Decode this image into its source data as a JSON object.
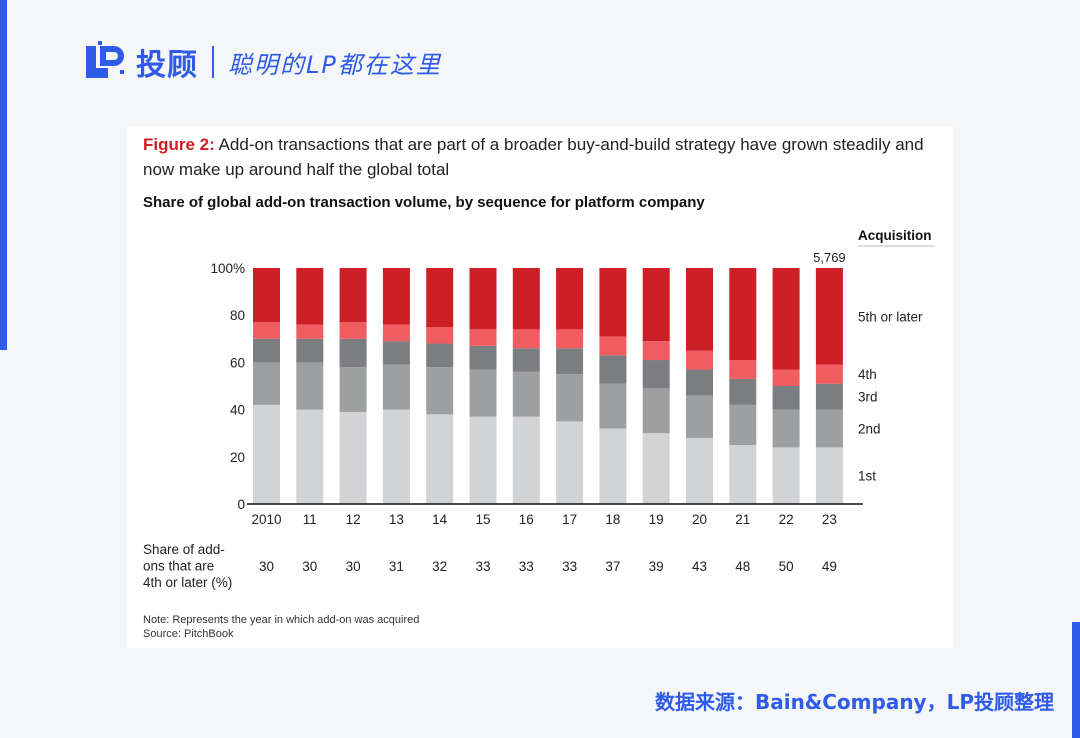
{
  "brand": {
    "name": "投顾",
    "slogan": "聪明的LP都在这里",
    "accent_color": "#2f5bea",
    "logo_icon": "lp-logo-icon"
  },
  "figure": {
    "label": "Figure 2:",
    "caption": "Add-on transactions that are part of a broader buy-and-build strategy have grown steadily and now make up around half the global total",
    "subtitle": "Share of global add-on transaction volume, by sequence for platform company",
    "note": "Note: Represents the year in which add-on was acquired",
    "source": "Source: PitchBook"
  },
  "footer": {
    "source": "数据来源：Bain&Company，LP投顾整理"
  },
  "chart_data": {
    "type": "bar",
    "stacked": true,
    "title": "Share of global add-on transaction volume, by sequence for platform company",
    "xlabel": "",
    "ylabel": "",
    "ylim": [
      0,
      100
    ],
    "y_ticks": [
      "0",
      "20",
      "40",
      "60",
      "80",
      "100%"
    ],
    "y_tick_values": [
      0,
      20,
      40,
      60,
      80,
      100
    ],
    "categories": [
      "2010",
      "11",
      "12",
      "13",
      "14",
      "15",
      "16",
      "17",
      "18",
      "19",
      "20",
      "21",
      "22",
      "23"
    ],
    "legend_title": "Acquisition",
    "legend_placement": "right",
    "total_label": "5,769",
    "series": [
      {
        "name": "1st",
        "color": "#d2d3d5",
        "values": [
          42,
          40,
          39,
          40,
          38,
          37,
          37,
          35,
          32,
          30,
          28,
          25,
          24,
          24
        ]
      },
      {
        "name": "2nd",
        "color": "#9e9fa1",
        "values": [
          18,
          20,
          19,
          19,
          20,
          20,
          19,
          20,
          19,
          19,
          18,
          17,
          16,
          16
        ]
      },
      {
        "name": "3rd",
        "color": "#7c7d80",
        "values": [
          10,
          10,
          12,
          10,
          10,
          10,
          10,
          11,
          12,
          12,
          11,
          11,
          10,
          11
        ]
      },
      {
        "name": "4th",
        "color": "#ef5d60",
        "values": [
          7,
          6,
          7,
          7,
          7,
          7,
          8,
          8,
          8,
          8,
          8,
          8,
          7,
          8
        ]
      },
      {
        "name": "5th or later",
        "color": "#cc1f26",
        "values": [
          23,
          24,
          23,
          24,
          25,
          26,
          26,
          26,
          29,
          31,
          35,
          39,
          43,
          41
        ]
      }
    ],
    "share_row": {
      "label_lines": [
        "Share of add-",
        "ons that are",
        "4th or later (%)"
      ],
      "values": [
        "30",
        "30",
        "30",
        "31",
        "32",
        "33",
        "33",
        "33",
        "37",
        "39",
        "43",
        "48",
        "50",
        "49"
      ]
    }
  }
}
